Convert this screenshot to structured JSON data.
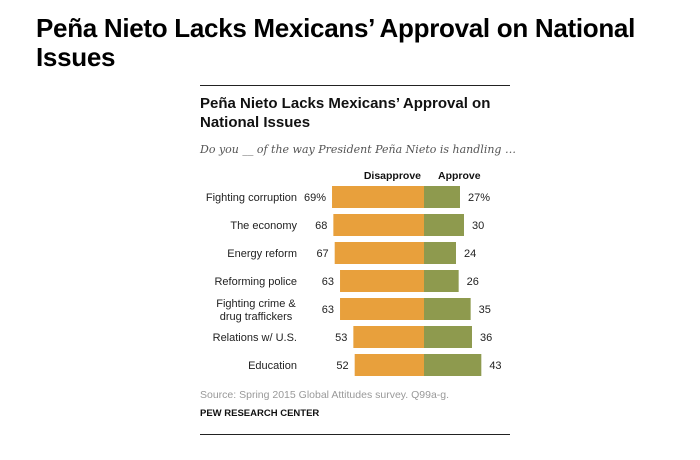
{
  "page_title": "Peña Nieto Lacks Mexicans’ Approval on National Issues",
  "chart_data": {
    "type": "bar",
    "title": "Peña Nieto Lacks Mexicans’ Approval on National Issues",
    "subtitle": "Do you __ of the way President Peña Nieto is handling …",
    "categories": [
      "Fighting corruption",
      "The economy",
      "Energy reform",
      "Reforming police",
      "Fighting crime & drug traffickers",
      "Relations w/ U.S.",
      "Education"
    ],
    "series": [
      {
        "name": "Disapprove",
        "color": "#E8A03C",
        "values": [
          69,
          68,
          67,
          63,
          63,
          53,
          52
        ]
      },
      {
        "name": "Approve",
        "color": "#8E9A4E",
        "values": [
          27,
          30,
          24,
          26,
          35,
          36,
          43
        ]
      }
    ],
    "first_label_suffix": "%",
    "layout": "diverging stacked bar"
  },
  "source": "Source: Spring 2015 Global Attitudes survey. Q99a-g.",
  "brand": "PEW RESEARCH CENTER"
}
